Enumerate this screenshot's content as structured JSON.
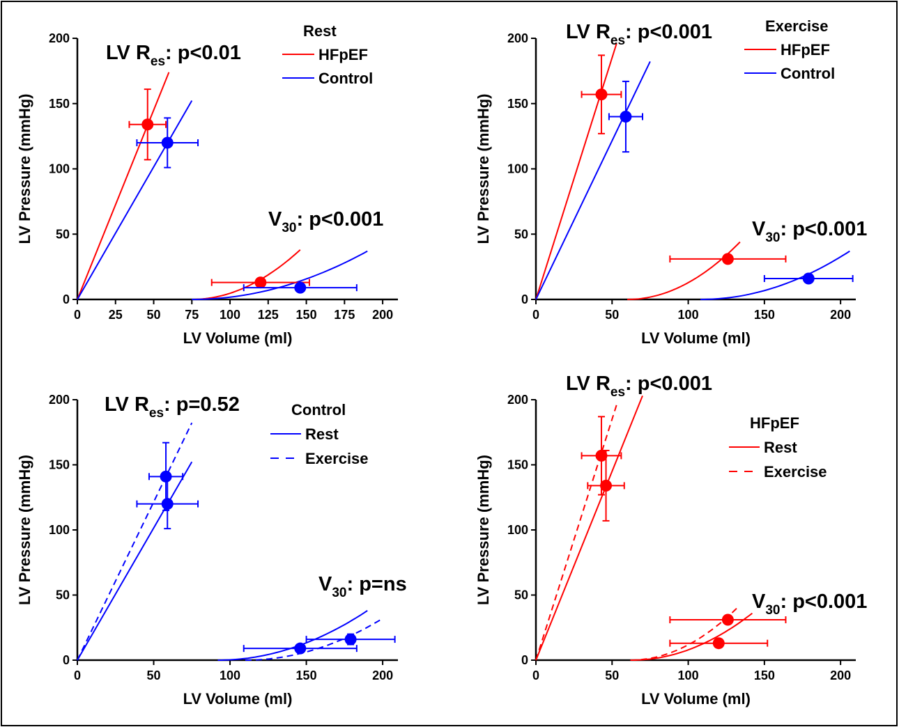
{
  "chart_data": [
    {
      "type": "scatter",
      "panel": "top-left",
      "xlabel": "LV Volume (ml)",
      "ylabel": "LV Pressure (mmHg)",
      "xlim": [
        0,
        210
      ],
      "ylim": [
        0,
        200
      ],
      "xticks": [
        0,
        25,
        50,
        75,
        100,
        125,
        150,
        175,
        200
      ],
      "yticks": [
        0,
        50,
        100,
        150,
        200
      ],
      "legend": {
        "title": "Rest",
        "placement": "top-right",
        "items": [
          {
            "label": "HFpEF",
            "color": "#ff0000",
            "dash": "solid"
          },
          {
            "label": "Control",
            "color": "#0000ff",
            "dash": "solid"
          }
        ]
      },
      "annotations": [
        {
          "main": "LV R",
          "sub": "es",
          "rest": ": p<0.01",
          "placement": "top"
        },
        {
          "main": "V",
          "sub": "30",
          "rest": ": p<0.001",
          "placement": "right"
        }
      ],
      "lines": [
        {
          "kind": "linear",
          "color": "#ff0000",
          "dash": "solid",
          "x0": 0,
          "x1": 60,
          "slope": 2.9
        },
        {
          "kind": "linear",
          "color": "#0000ff",
          "dash": "solid",
          "x0": 0,
          "x1": 75,
          "slope": 2.03
        },
        {
          "kind": "curve",
          "color": "#ff0000",
          "dash": "solid",
          "v0": 75,
          "x1": 146,
          "p1": 38
        },
        {
          "kind": "curve",
          "color": "#0000ff",
          "dash": "solid",
          "v0": 75,
          "x1": 190,
          "p1": 37
        }
      ],
      "points": [
        {
          "name": "HFpEF end-systolic",
          "color": "#ff0000",
          "x": 46,
          "y": 134,
          "xerr": 12,
          "yerr": 27
        },
        {
          "name": "Control end-systolic",
          "color": "#0000ff",
          "x": 59,
          "y": 120,
          "xerr": 20,
          "yerr": 19
        },
        {
          "name": "HFpEF end-diastolic",
          "color": "#ff0000",
          "x": 120,
          "y": 13,
          "xerr": 32,
          "yerr": 0
        },
        {
          "name": "Control end-diastolic",
          "color": "#0000ff",
          "x": 146,
          "y": 9,
          "xerr": 37,
          "yerr": 0
        }
      ]
    },
    {
      "type": "scatter",
      "panel": "top-right",
      "xlabel": "LV Volume (ml)",
      "ylabel": "LV Pressure (mmHg)",
      "xlim": [
        0,
        210
      ],
      "ylim": [
        0,
        200
      ],
      "xticks": [
        0,
        50,
        100,
        150,
        200
      ],
      "yticks": [
        0,
        50,
        100,
        150,
        200
      ],
      "legend": {
        "title": "Exercise",
        "placement": "top-right",
        "items": [
          {
            "label": "HFpEF",
            "color": "#ff0000",
            "dash": "solid"
          },
          {
            "label": "Control",
            "color": "#0000ff",
            "dash": "solid"
          }
        ]
      },
      "annotations": [
        {
          "main": "LV R",
          "sub": "es",
          "rest": ": p<0.001",
          "placement": "top"
        },
        {
          "main": "V",
          "sub": "30",
          "rest": ": p<0.001",
          "placement": "right"
        }
      ],
      "lines": [
        {
          "kind": "linear",
          "color": "#ff0000",
          "dash": "solid",
          "x0": 0,
          "x1": 53,
          "slope": 3.7
        },
        {
          "kind": "linear",
          "color": "#0000ff",
          "dash": "solid",
          "x0": 0,
          "x1": 75,
          "slope": 2.43
        },
        {
          "kind": "curve",
          "color": "#ff0000",
          "dash": "solid",
          "v0": 60,
          "x1": 134,
          "p1": 44
        },
        {
          "kind": "curve",
          "color": "#0000ff",
          "dash": "solid",
          "v0": 108,
          "x1": 206,
          "p1": 37
        }
      ],
      "points": [
        {
          "name": "HFpEF end-systolic",
          "color": "#ff0000",
          "x": 43,
          "y": 157,
          "xerr": 13,
          "yerr": 30
        },
        {
          "name": "Control end-systolic",
          "color": "#0000ff",
          "x": 59,
          "y": 140,
          "xerr": 11,
          "yerr": 27
        },
        {
          "name": "HFpEF end-diastolic",
          "color": "#ff0000",
          "x": 126,
          "y": 31,
          "xerr": 38,
          "yerr": 0
        },
        {
          "name": "Control end-diastolic",
          "color": "#0000ff",
          "x": 179,
          "y": 16,
          "xerr": 29,
          "yerr": 0
        }
      ]
    },
    {
      "type": "scatter",
      "panel": "bottom-left",
      "xlabel": "LV Volume (ml)",
      "ylabel": "LV Pressure (mmHg)",
      "xlim": [
        0,
        210
      ],
      "ylim": [
        0,
        200
      ],
      "xticks": [
        0,
        50,
        100,
        150,
        200
      ],
      "yticks": [
        0,
        50,
        100,
        150,
        200
      ],
      "legend": {
        "title": "Control",
        "placement": "top-right",
        "items": [
          {
            "label": "Rest",
            "color": "#0000ff",
            "dash": "solid"
          },
          {
            "label": "Exercise",
            "color": "#0000ff",
            "dash": "dashed"
          }
        ]
      },
      "annotations": [
        {
          "main": "LV R",
          "sub": "es",
          "rest": ": p=0.52",
          "placement": "top"
        },
        {
          "main": "V",
          "sub": "30",
          "rest": ": p=ns",
          "placement": "right"
        }
      ],
      "lines": [
        {
          "kind": "linear",
          "color": "#0000ff",
          "dash": "solid",
          "x0": 0,
          "x1": 75,
          "slope": 2.03
        },
        {
          "kind": "linear",
          "color": "#0000ff",
          "dash": "dashed",
          "x0": 0,
          "x1": 75,
          "slope": 2.43
        },
        {
          "kind": "curve",
          "color": "#0000ff",
          "dash": "solid",
          "v0": 92,
          "x1": 190,
          "p1": 38
        },
        {
          "kind": "curve",
          "color": "#0000ff",
          "dash": "dashed",
          "v0": 110,
          "x1": 200,
          "p1": 32
        }
      ],
      "points": [
        {
          "name": "Exercise end-systolic",
          "color": "#0000ff",
          "x": 58,
          "y": 141,
          "xerr": 11,
          "yerr": 26
        },
        {
          "name": "Rest end-systolic",
          "color": "#0000ff",
          "x": 59,
          "y": 120,
          "xerr": 20,
          "yerr": 19
        },
        {
          "name": "Rest end-diastolic",
          "color": "#0000ff",
          "x": 146,
          "y": 9,
          "xerr": 37,
          "yerr": 0
        },
        {
          "name": "Exercise end-diastolic",
          "color": "#0000ff",
          "x": 179,
          "y": 16,
          "xerr": 29,
          "yerr": 4
        }
      ]
    },
    {
      "type": "scatter",
      "panel": "bottom-right",
      "xlabel": "LV Volume (ml)",
      "ylabel": "LV Pressure (mmHg)",
      "xlim": [
        0,
        210
      ],
      "ylim": [
        0,
        200
      ],
      "xticks": [
        0,
        50,
        100,
        150,
        200
      ],
      "yticks": [
        0,
        50,
        100,
        150,
        200
      ],
      "legend": {
        "title": "HFpEF",
        "placement": "top-right",
        "items": [
          {
            "label": "Rest",
            "color": "#ff0000",
            "dash": "solid"
          },
          {
            "label": "Exercise",
            "color": "#ff0000",
            "dash": "dashed"
          }
        ]
      },
      "annotations": [
        {
          "main": "LV R",
          "sub": "es",
          "rest": ": p<0.001",
          "placement": "top"
        },
        {
          "main": "V",
          "sub": "30",
          "rest": ": p<0.001",
          "placement": "right"
        }
      ],
      "lines": [
        {
          "kind": "linear",
          "color": "#ff0000",
          "dash": "solid",
          "x0": 0,
          "x1": 70,
          "slope": 2.9
        },
        {
          "kind": "linear",
          "color": "#ff0000",
          "dash": "dashed",
          "x0": 0,
          "x1": 53,
          "slope": 3.7
        },
        {
          "kind": "curve",
          "color": "#ff0000",
          "dash": "solid",
          "v0": 63,
          "x1": 142,
          "p1": 36
        },
        {
          "kind": "curve",
          "color": "#ff0000",
          "dash": "dashed",
          "v0": 62,
          "x1": 132,
          "p1": 40
        }
      ],
      "points": [
        {
          "name": "Exercise end-systolic",
          "color": "#ff0000",
          "x": 43,
          "y": 157,
          "xerr": 13,
          "yerr": 30
        },
        {
          "name": "Rest end-systolic",
          "color": "#ff0000",
          "x": 46,
          "y": 134,
          "xerr": 12,
          "yerr": 27
        },
        {
          "name": "Exercise end-diastolic",
          "color": "#ff0000",
          "x": 126,
          "y": 31,
          "xerr": 38,
          "yerr": 0
        },
        {
          "name": "Rest end-diastolic",
          "color": "#ff0000",
          "x": 120,
          "y": 13,
          "xerr": 32,
          "yerr": 0
        }
      ]
    }
  ]
}
